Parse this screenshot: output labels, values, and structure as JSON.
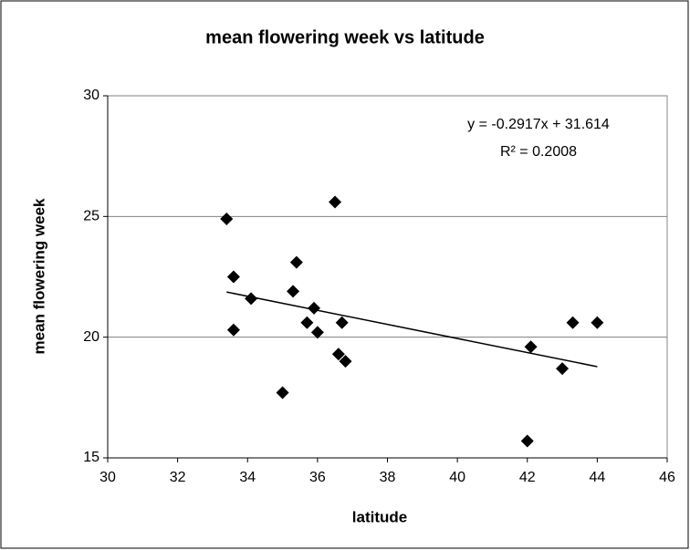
{
  "chart_data": {
    "type": "scatter",
    "title": "mean flowering week vs latitude",
    "x_label": "latitude",
    "y_label": "mean flowering week",
    "x": [
      33.4,
      33.6,
      33.6,
      34.1,
      35.4,
      35.3,
      35.0,
      35.9,
      35.7,
      36.0,
      36.5,
      36.6,
      36.7,
      36.8,
      42.1,
      42.0,
      43.0,
      43.3,
      44.0
    ],
    "values": [
      24.9,
      22.5,
      20.3,
      21.6,
      23.1,
      21.9,
      17.7,
      21.2,
      20.6,
      20.2,
      25.6,
      19.3,
      20.6,
      19.0,
      19.6,
      15.7,
      18.7,
      20.6,
      20.6
    ],
    "color": "#000000",
    "xlim": [
      30,
      46
    ],
    "xticks": [
      30,
      32,
      34,
      36,
      38,
      40,
      42,
      44,
      46
    ],
    "ylim": [
      15,
      30
    ],
    "yticks": [
      15,
      20,
      25,
      30
    ],
    "grid": true,
    "trendline": {
      "slope": -0.2917,
      "intercept": 31.614
    },
    "annotations": [
      "y = -0.2917x + 31.614",
      "R² = 0.2008"
    ]
  }
}
